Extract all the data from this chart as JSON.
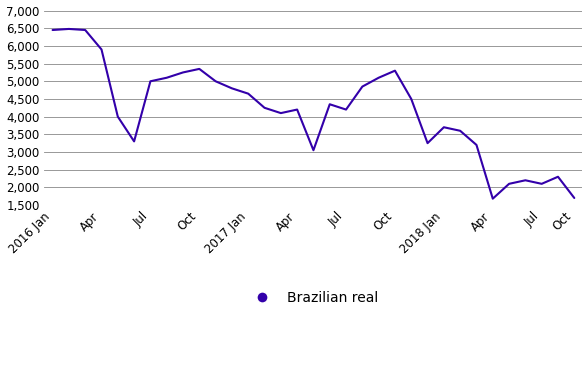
{
  "title": "",
  "ylabel": "",
  "xlabel": "",
  "line_color": "#3300aa",
  "line_width": 1.5,
  "legend_label": "Brazilian real",
  "legend_marker_color": "#3300aa",
  "ylim": [
    1500,
    7000
  ],
  "yticks": [
    1500,
    2000,
    2500,
    3000,
    3500,
    4000,
    4500,
    5000,
    5500,
    6000,
    6500,
    7000
  ],
  "xtick_labels": [
    "2016 Jan",
    "Apr",
    "Jul",
    "Oct",
    "2017 Jan",
    "Apr",
    "Jul",
    "Oct",
    "2018 Jan",
    "Apr",
    "Jul",
    "Oct"
  ],
  "x_values": [
    0,
    1,
    2,
    3,
    4,
    5,
    6,
    7,
    8,
    9,
    10,
    11,
    12,
    13,
    14,
    15,
    16,
    17,
    18,
    19,
    20,
    21,
    22,
    23,
    24,
    25,
    26,
    27,
    28,
    29,
    30,
    31,
    32
  ],
  "y_values": [
    6450,
    6480,
    6450,
    5900,
    4000,
    3300,
    5000,
    5100,
    5250,
    5350,
    5000,
    4800,
    4650,
    4250,
    4100,
    4200,
    3050,
    4350,
    4200,
    4850,
    5100,
    5300,
    4500,
    3250,
    3700,
    3600,
    3200,
    1680,
    2100,
    2200,
    2100,
    2300,
    1700
  ],
  "xtick_positions": [
    0,
    3,
    6,
    9,
    12,
    15,
    18,
    21,
    24,
    27,
    30,
    32
  ],
  "grid_color": "#888888",
  "grid_linewidth": 0.6,
  "tick_fontsize": 8.5,
  "legend_fontsize": 10,
  "fig_width": 5.88,
  "fig_height": 3.68,
  "dpi": 100
}
